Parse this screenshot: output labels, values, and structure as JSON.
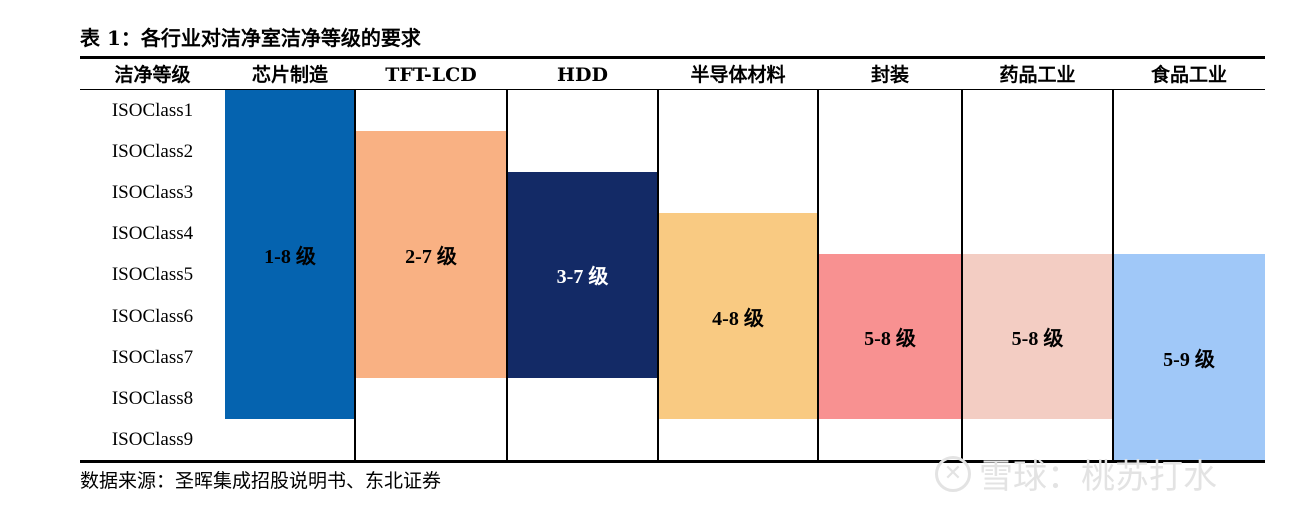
{
  "title": "表 1：各行业对洁净室洁净等级的要求",
  "header": {
    "first_column": "洁净等级",
    "industries": [
      "芯片制造",
      "TFT-LCD",
      "HDD",
      "半导体材料",
      "封装",
      "药品工业",
      "食品工业"
    ]
  },
  "source": "数据来源：圣晖集成招股说明书、东北证券",
  "watermark": "雪球：桃苏打水",
  "chart_data": {
    "type": "table",
    "rows": [
      "ISOClass1",
      "ISOClass2",
      "ISOClass3",
      "ISOClass4",
      "ISOClass5",
      "ISOClass6",
      "ISOClass7",
      "ISOClass8",
      "ISOClass9"
    ],
    "columns": [
      "芯片制造",
      "TFT-LCD",
      "HDD",
      "半导体材料",
      "封装",
      "药品工业",
      "食品工业"
    ],
    "ranges": [
      {
        "industry": "芯片制造",
        "min_class": 1,
        "max_class": 8,
        "label": "1-8 级",
        "color": "#0563AF",
        "text_color": "#000000"
      },
      {
        "industry": "TFT-LCD",
        "min_class": 2,
        "max_class": 7,
        "label": "2-7 级",
        "color": "#F9B183",
        "text_color": "#000000"
      },
      {
        "industry": "HDD",
        "min_class": 3,
        "max_class": 7,
        "label": "3-7 级",
        "color": "#132A66",
        "text_color": "#FFFFFF"
      },
      {
        "industry": "半导体材料",
        "min_class": 4,
        "max_class": 8,
        "label": "4-8 级",
        "color": "#F9CA82",
        "text_color": "#000000"
      },
      {
        "industry": "封装",
        "min_class": 5,
        "max_class": 8,
        "label": "5-8 级",
        "color": "#F89191",
        "text_color": "#000000"
      },
      {
        "industry": "药品工业",
        "min_class": 5,
        "max_class": 8,
        "label": "5-8 级",
        "color": "#F3CDC3",
        "text_color": "#000000"
      },
      {
        "industry": "食品工业",
        "min_class": 5,
        "max_class": 9,
        "label": "5-9 级",
        "color": "#A0C8F8",
        "text_color": "#000000"
      }
    ]
  }
}
